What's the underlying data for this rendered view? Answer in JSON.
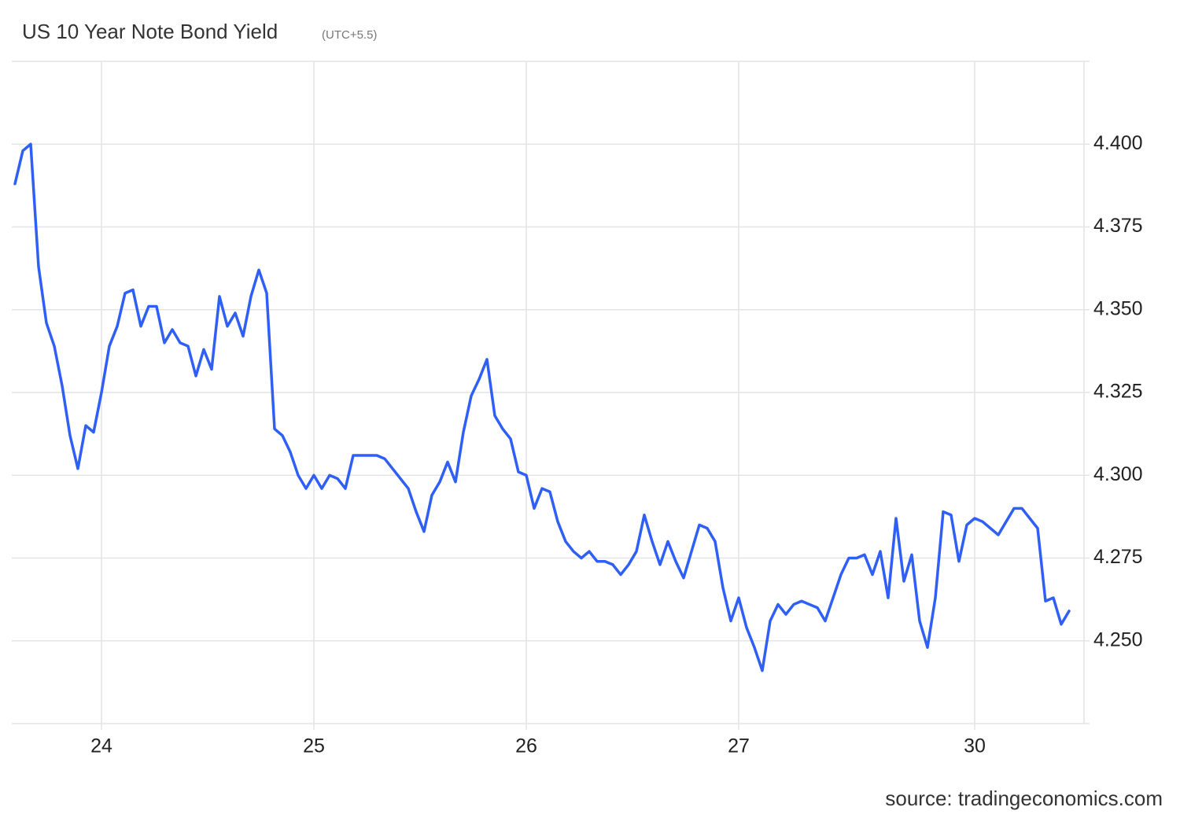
{
  "chart_data": {
    "type": "line",
    "title": "US 10 Year Note Bond Yield",
    "subtitle": "(UTC+5.5)",
    "source": "source: tradingeconomics.com",
    "categories": [
      null,
      null,
      null,
      null,
      null,
      null,
      null,
      null,
      null,
      null,
      null,
      "24",
      null,
      null,
      null,
      null,
      null,
      null,
      null,
      null,
      null,
      null,
      null,
      null,
      null,
      null,
      null,
      null,
      null,
      null,
      null,
      null,
      null,
      null,
      null,
      null,
      null,
      null,
      "25",
      null,
      null,
      null,
      null,
      null,
      null,
      null,
      null,
      null,
      null,
      null,
      null,
      null,
      null,
      null,
      null,
      null,
      null,
      null,
      null,
      null,
      null,
      null,
      null,
      null,
      null,
      "26",
      null,
      null,
      null,
      null,
      null,
      null,
      null,
      null,
      null,
      null,
      null,
      null,
      null,
      null,
      null,
      null,
      null,
      null,
      null,
      null,
      null,
      null,
      null,
      null,
      null,
      null,
      "27",
      null,
      null,
      null,
      null,
      null,
      null,
      null,
      null,
      null,
      null,
      null,
      null,
      null,
      null,
      null,
      null,
      null,
      null,
      null,
      null,
      null,
      null,
      null,
      null,
      null,
      null,
      null,
      null,
      null,
      "30",
      null,
      null,
      null,
      null,
      null,
      null,
      null,
      null,
      null,
      null,
      null,
      null
    ],
    "values": [
      4.388,
      4.398,
      4.4,
      4.363,
      4.346,
      4.339,
      4.327,
      4.312,
      4.302,
      4.315,
      4.313,
      4.325,
      4.339,
      4.345,
      4.355,
      4.356,
      4.345,
      4.351,
      4.351,
      4.34,
      4.344,
      4.34,
      4.339,
      4.33,
      4.338,
      4.332,
      4.354,
      4.345,
      4.349,
      4.342,
      4.354,
      4.362,
      4.355,
      4.314,
      4.312,
      4.307,
      4.3,
      4.296,
      4.3,
      4.296,
      4.3,
      4.299,
      4.296,
      4.306,
      4.306,
      4.306,
      4.306,
      4.305,
      4.302,
      4.299,
      4.296,
      4.289,
      4.283,
      4.294,
      4.298,
      4.304,
      4.298,
      4.313,
      4.324,
      4.329,
      4.335,
      4.318,
      4.314,
      4.311,
      4.301,
      4.3,
      4.29,
      4.296,
      4.295,
      4.286,
      4.28,
      4.277,
      4.275,
      4.277,
      4.274,
      4.274,
      4.273,
      4.27,
      4.273,
      4.277,
      4.288,
      4.28,
      4.273,
      4.28,
      4.274,
      4.269,
      4.277,
      4.285,
      4.284,
      4.28,
      4.266,
      4.256,
      4.263,
      4.254,
      4.248,
      4.241,
      4.256,
      4.261,
      4.258,
      4.261,
      4.262,
      4.261,
      4.26,
      4.256,
      4.263,
      4.27,
      4.275,
      4.275,
      4.276,
      4.27,
      4.277,
      4.263,
      4.287,
      4.268,
      4.276,
      4.256,
      4.248,
      4.263,
      4.289,
      4.288,
      4.274,
      4.285,
      4.287,
      4.286,
      4.284,
      4.282,
      4.286,
      4.29,
      4.29,
      4.287,
      4.284,
      4.262,
      4.263,
      4.255,
      4.259
    ],
    "color": "#2f5ff5",
    "ylim": [
      4.225,
      4.425
    ],
    "yticks": [
      {
        "value": 4.25,
        "label": "4.250"
      },
      {
        "value": 4.275,
        "label": "4.275"
      },
      {
        "value": 4.3,
        "label": "4.300"
      },
      {
        "value": 4.325,
        "label": "4.325"
      },
      {
        "value": 4.35,
        "label": "4.350"
      },
      {
        "value": 4.375,
        "label": "4.375"
      },
      {
        "value": 4.4,
        "label": "4.400"
      }
    ],
    "grid": true
  }
}
